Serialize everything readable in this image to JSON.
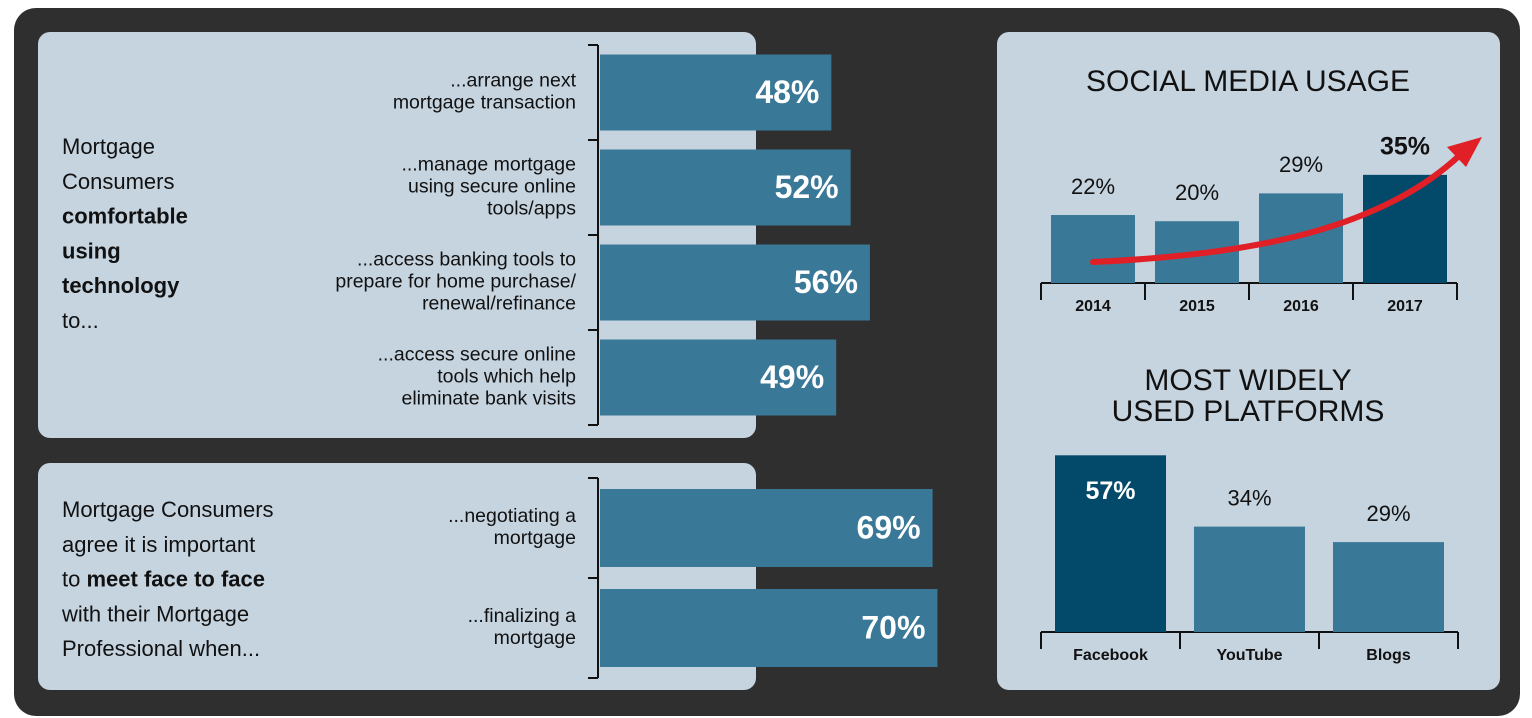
{
  "chart_data": [
    {
      "type": "bar",
      "horizontal": true,
      "color": "#3a7898",
      "note": [
        [
          {
            "text": "Mortgage",
            "bold": false
          }
        ],
        [
          {
            "text": "Consumers",
            "bold": false
          }
        ],
        [
          {
            "text": "comfortable",
            "bold": true
          }
        ],
        [
          {
            "text": "using",
            "bold": true
          }
        ],
        [
          {
            "text": "technology",
            "bold": true
          }
        ],
        [
          {
            "text": "to...",
            "bold": false
          }
        ]
      ],
      "categories": [
        [
          "...arrange next",
          "mortgage transaction"
        ],
        [
          "...manage mortgage",
          "using secure online",
          "tools/apps"
        ],
        [
          "...access banking tools to",
          "prepare for home purchase/",
          "renewal/refinance"
        ],
        [
          "...access secure online",
          "tools which help",
          "eliminate bank visits"
        ]
      ],
      "values": [
        48,
        52,
        56,
        49
      ],
      "value_labels": [
        "48%",
        "52%",
        "56%",
        "49%"
      ]
    },
    {
      "type": "bar",
      "horizontal": true,
      "color": "#3a7898",
      "note": [
        [
          {
            "text": "Mortgage Consumers",
            "bold": false
          }
        ],
        [
          {
            "text": "agree it is important",
            "bold": false
          }
        ],
        [
          {
            "text": "to ",
            "bold": false
          },
          {
            "text": "meet face to face",
            "bold": true
          }
        ],
        [
          {
            "text": "with their Mortgage",
            "bold": false
          }
        ],
        [
          {
            "text": "Professional when...",
            "bold": false
          }
        ]
      ],
      "categories": [
        [
          "...negotiating a",
          "mortgage"
        ],
        [
          "...finalizing a",
          "mortgage"
        ]
      ],
      "values": [
        69,
        70
      ],
      "value_labels": [
        "69%",
        "70%"
      ]
    },
    {
      "type": "bar",
      "title": [
        "SOCIAL MEDIA USAGE"
      ],
      "categories": [
        "2014",
        "2015",
        "2016",
        "2017"
      ],
      "values": [
        22,
        20,
        29,
        35
      ],
      "value_labels": [
        "22%",
        "20%",
        "29%",
        "35%"
      ],
      "colors": [
        "#3a7898",
        "#3a7898",
        "#3a7898",
        "#034a6a"
      ],
      "highlight": 3,
      "trend_arrow": true
    },
    {
      "type": "bar",
      "title": [
        "MOST WIDELY",
        "USED PLATFORMS"
      ],
      "categories": [
        "Facebook",
        "YouTube",
        "Blogs"
      ],
      "values": [
        57,
        34,
        29
      ],
      "value_labels": [
        "57%",
        "34%",
        "29%"
      ],
      "colors": [
        "#034a6a",
        "#3a7898",
        "#3a7898"
      ],
      "highlight": 0
    }
  ]
}
